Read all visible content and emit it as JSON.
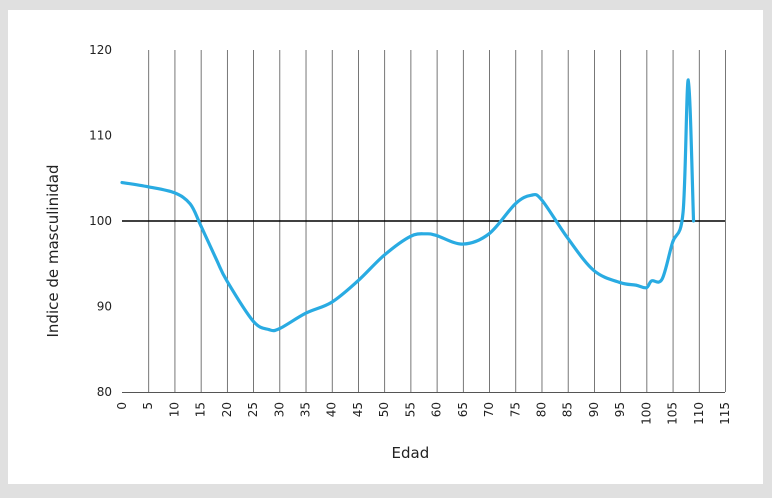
{
  "colors": {
    "background": "#e0e0e0",
    "panel": "#ffffff",
    "line": "#29abe2",
    "grid": "#555555",
    "reference_line": "#000000"
  },
  "chart_data": {
    "type": "line",
    "title": "",
    "xlabel": "Edad",
    "ylabel": "Indice de masculinidad",
    "xlim": [
      0,
      115
    ],
    "ylim": [
      80,
      120
    ],
    "x_ticks": [
      0,
      5,
      10,
      15,
      20,
      25,
      30,
      35,
      40,
      45,
      50,
      55,
      60,
      65,
      70,
      75,
      80,
      85,
      90,
      95,
      100,
      105,
      110,
      115
    ],
    "y_ticks": [
      80,
      90,
      100,
      110,
      120
    ],
    "grid": "vertical",
    "reference_line": 100,
    "series": [
      {
        "name": "",
        "x": [
          0,
          5,
          10,
          13,
          15,
          18,
          20,
          25,
          28,
          30,
          35,
          40,
          45,
          50,
          55,
          58,
          60,
          65,
          70,
          75,
          78,
          80,
          85,
          90,
          95,
          98,
          100,
          101,
          103,
          105,
          107,
          108,
          109
        ],
        "y": [
          104.5,
          104.0,
          103.3,
          102.0,
          99.5,
          95.5,
          93.0,
          88.3,
          87.3,
          87.4,
          89.2,
          90.5,
          93.0,
          96.0,
          98.2,
          98.5,
          98.3,
          97.3,
          98.5,
          102.0,
          103.0,
          102.5,
          98.0,
          94.2,
          92.8,
          92.5,
          92.2,
          93.0,
          93.2,
          97.5,
          101.0,
          116.5,
          100.0
        ]
      }
    ]
  }
}
